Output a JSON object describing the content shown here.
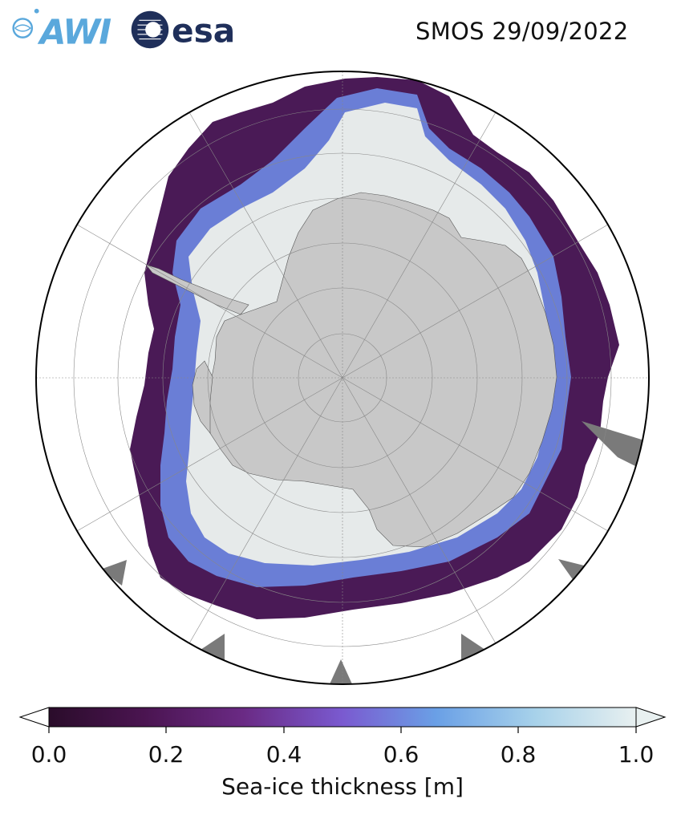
{
  "header": {
    "title": "SMOS 29/09/2022",
    "logo_left_text": "AWI",
    "logo_right_text": "esa"
  },
  "map": {
    "projection": "south-polar-stereographic",
    "colors": {
      "land": "#c8c8c8",
      "ocean": "#ffffff",
      "shelf_ice": "#808080",
      "boundary": "#000000"
    }
  },
  "colorbar": {
    "label": "Sea-ice thickness [m]",
    "ticks": [
      "0.0",
      "0.2",
      "0.4",
      "0.6",
      "0.8",
      "1.0"
    ],
    "vmin": 0.0,
    "vmax": 1.0,
    "extend": "both",
    "colormap": [
      "#2a0c2a",
      "#4a1450",
      "#6a2a84",
      "#7a5ad0",
      "#6aa0e6",
      "#a8d2ea",
      "#e8f0f0"
    ]
  }
}
